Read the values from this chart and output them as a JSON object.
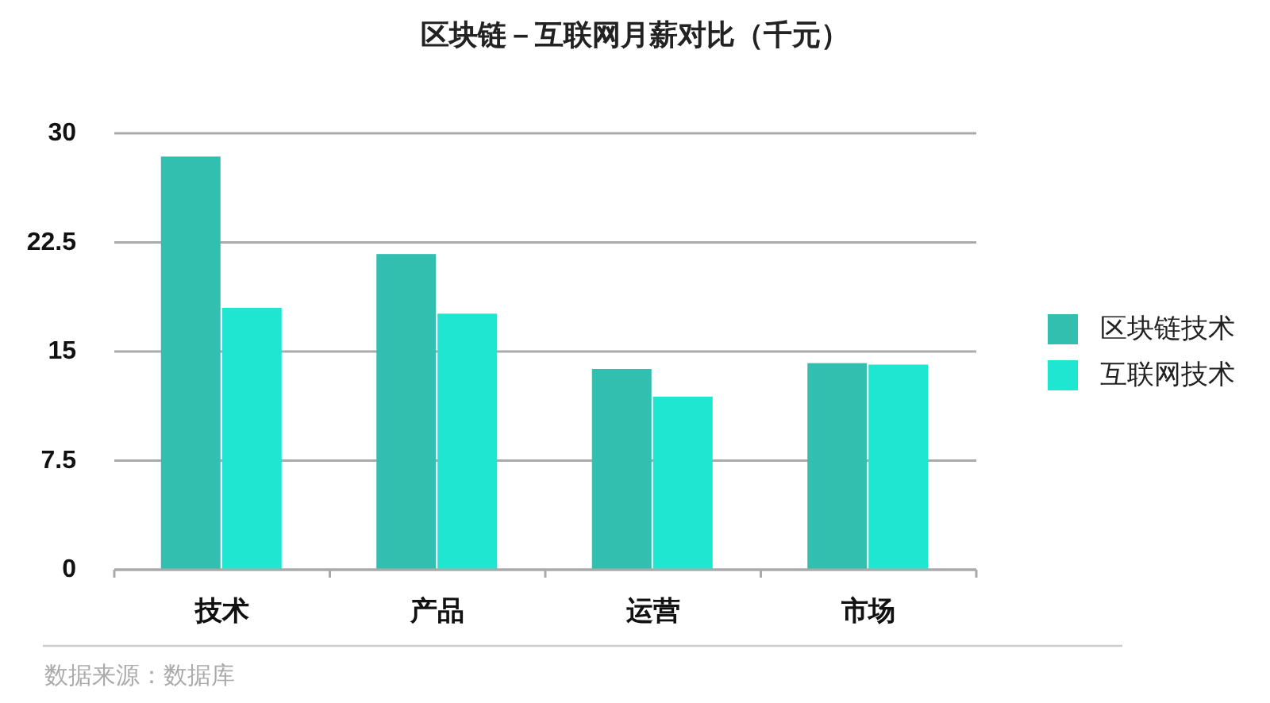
{
  "chart_data": {
    "type": "bar",
    "title": "区块链－互联网月薪对比（千元）",
    "categories": [
      "技术",
      "产品",
      "运营",
      "市场"
    ],
    "series": [
      {
        "name": "区块链技术",
        "color": "#33bfb0",
        "values": [
          28.4,
          21.7,
          13.8,
          14.2
        ]
      },
      {
        "name": "互联网技术",
        "color": "#1ee6d0",
        "values": [
          18.0,
          17.6,
          11.9,
          14.1
        ]
      }
    ],
    "ylim": [
      0,
      30
    ],
    "yticks": [
      0,
      7.5,
      15,
      22.5,
      30
    ],
    "grid": "y",
    "legend": "right",
    "annotations": [
      "数据来源：数据库"
    ]
  }
}
